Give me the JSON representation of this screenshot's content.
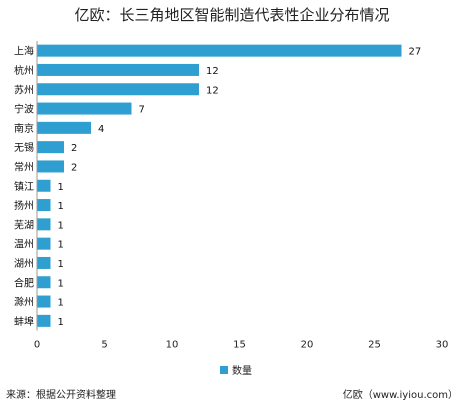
{
  "chart_data": {
    "type": "bar",
    "orientation": "horizontal",
    "title": "亿欧：长三角地区智能制造代表性企业分布情况",
    "categories": [
      "上海",
      "杭州",
      "苏州",
      "宁波",
      "南京",
      "无锡",
      "常州",
      "镇江",
      "扬州",
      "芜湖",
      "温州",
      "湖州",
      "合肥",
      "滁州",
      "蚌埠"
    ],
    "series": [
      {
        "name": "数量",
        "values": [
          27,
          12,
          12,
          7,
          4,
          2,
          2,
          1,
          1,
          1,
          1,
          1,
          1,
          1,
          1
        ]
      }
    ],
    "xlim": [
      0,
      30
    ],
    "xticks": [
      0,
      5,
      10,
      15,
      20,
      25,
      30
    ],
    "data_labels": true,
    "grid": false,
    "legend_position": "bottom",
    "bar_color": "#2e9fd0"
  },
  "footer": {
    "source": "来源：根据公开资料整理",
    "brand": "亿欧（www.iyiou.com）"
  }
}
